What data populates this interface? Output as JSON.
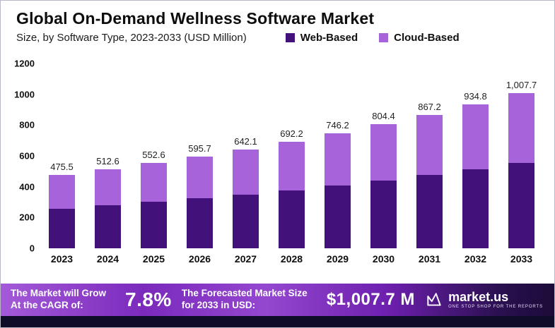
{
  "header": {
    "title": "Global On-Demand Wellness Software Market",
    "subtitle": "Size, by Software Type, 2023-2033 (USD Million)"
  },
  "legend": [
    {
      "label": "Web-Based",
      "color": "#42117a"
    },
    {
      "label": "Cloud-Based",
      "color": "#a763d9"
    }
  ],
  "chart_data": {
    "type": "bar",
    "stacked": true,
    "title": "Global On-Demand Wellness Software Market",
    "subtitle": "Size, by Software Type, 2023-2033 (USD Million)",
    "unit": "USD Million",
    "categories": [
      "2023",
      "2024",
      "2025",
      "2026",
      "2027",
      "2028",
      "2029",
      "2030",
      "2031",
      "2032",
      "2033"
    ],
    "series": [
      {
        "name": "Web-Based",
        "color": "#42117a",
        "values": [
          255,
          278,
          301,
          325,
          350,
          376,
          408,
          438,
          476,
          514,
          556
        ]
      },
      {
        "name": "Cloud-Based",
        "color": "#a763d9",
        "values": [
          220.5,
          234.6,
          251.6,
          270.7,
          292.1,
          316.2,
          338.2,
          366.4,
          391.2,
          420.8,
          451.7
        ]
      }
    ],
    "totals": [
      475.5,
      512.6,
      552.6,
      595.7,
      642.1,
      692.2,
      746.2,
      804.4,
      867.2,
      934.8,
      1007.7
    ],
    "total_labels": [
      "475.5",
      "512.6",
      "552.6",
      "595.7",
      "642.1",
      "692.2",
      "746.2",
      "804.4",
      "867.2",
      "934.8",
      "1,007.7"
    ],
    "ylim": [
      0,
      1200
    ],
    "yticks": [
      "0",
      "200",
      "400",
      "600",
      "800",
      "1000",
      "1200"
    ],
    "grid": false,
    "legend_position": "top-right"
  },
  "footer": {
    "cagr_label": "The Market will Grow At the CAGR of:",
    "cagr_value": "7.8%",
    "forecast_label": "The Forecasted Market Size for 2033 in USD:",
    "forecast_value": "$1,007.7 M",
    "brand_name": "market.us",
    "brand_tagline": "ONE STOP SHOP FOR THE REPORTS"
  }
}
